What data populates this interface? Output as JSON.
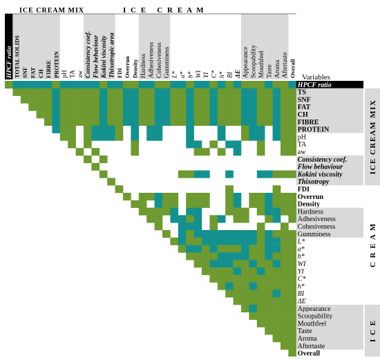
{
  "colors": {
    "green": "#6e9a31",
    "teal": "#14918e",
    "label_bg": "#d9d9d9",
    "black": "#000000"
  },
  "headers": {
    "mix": "ICE CREAM MIX",
    "ice_cream_spaced": "I C E   C R E A M",
    "variables": "Variables",
    "right_mix": "ICE CREAM MIX",
    "right_cream": "C R E A M",
    "right_ice": "I C E"
  },
  "columns": [
    {
      "label": "HPCF ratio",
      "style": "bi",
      "dark": true
    },
    {
      "label": "TOTAL SOLIDS",
      "style": "b",
      "bg": true
    },
    {
      "label": "SNF",
      "style": "b",
      "bg": true
    },
    {
      "label": "FAT",
      "style": "b",
      "bg": true
    },
    {
      "label": "CH",
      "style": "b",
      "bg": true
    },
    {
      "label": "FIBRE",
      "style": "b",
      "bg": true
    },
    {
      "label": "PROTEIN",
      "style": "b",
      "bg": true
    },
    {
      "label": "pH",
      "style": "n",
      "bg": false
    },
    {
      "label": "TA",
      "style": "n",
      "bg": false
    },
    {
      "label": "aw",
      "style": "n",
      "bg": false
    },
    {
      "label": "Consistency coef.",
      "style": "bi",
      "bg": true
    },
    {
      "label": "Flow behaviour",
      "style": "bi",
      "bg": true
    },
    {
      "label": "Kokini viscosity",
      "style": "bi",
      "bg": true
    },
    {
      "label": "Thixotropic area",
      "style": "bi",
      "bg": true
    },
    {
      "label": "FDI",
      "style": "b",
      "bg": false
    },
    {
      "label": "Overrun",
      "style": "b",
      "bg": false
    },
    {
      "label": "Density",
      "style": "b",
      "bg": false
    },
    {
      "label": "Hardness",
      "style": "n",
      "bg": true
    },
    {
      "label": "Adhesiveness",
      "style": "n",
      "bg": true
    },
    {
      "label": "Cohesiveness",
      "style": "n",
      "bg": true
    },
    {
      "label": "Gumminess",
      "style": "n",
      "bg": true
    },
    {
      "label": "L*",
      "style": "i",
      "bg": false
    },
    {
      "label": "a*",
      "style": "i",
      "bg": false
    },
    {
      "label": "b*",
      "style": "i",
      "bg": false
    },
    {
      "label": "WI",
      "style": "i",
      "bg": false
    },
    {
      "label": "YI",
      "style": "i",
      "bg": false
    },
    {
      "label": "C*",
      "style": "i",
      "bg": false
    },
    {
      "label": "h*",
      "style": "i",
      "bg": false
    },
    {
      "label": "BI",
      "style": "i",
      "bg": false
    },
    {
      "label": "ΔE",
      "style": "bi",
      "bg": false
    },
    {
      "label": "Appearance",
      "style": "n",
      "bg": true
    },
    {
      "label": "Scoopability",
      "style": "n",
      "bg": true
    },
    {
      "label": "Mouthfeel",
      "style": "n",
      "bg": true
    },
    {
      "label": "Taste",
      "style": "n",
      "bg": true
    },
    {
      "label": "Aroma",
      "style": "n",
      "bg": true
    },
    {
      "label": "Aftertaste",
      "style": "n",
      "bg": true
    },
    {
      "label": "Overall",
      "style": "b",
      "bg": false
    }
  ],
  "rows": [
    {
      "label": "HPCF ratio",
      "style": "bi",
      "dark": true
    },
    {
      "label": "TS",
      "style": "b",
      "bg": true
    },
    {
      "label": "SNF",
      "style": "b",
      "bg": true
    },
    {
      "label": "FAT",
      "style": "b",
      "bg": true
    },
    {
      "label": "CH",
      "style": "b",
      "bg": true
    },
    {
      "label": "FIBRE",
      "style": "b",
      "bg": true
    },
    {
      "label": "PROTEIN",
      "style": "b",
      "bg": true
    },
    {
      "label": "pH",
      "style": "n",
      "bg": false
    },
    {
      "label": "TA",
      "style": "n",
      "bg": false
    },
    {
      "label": "aw",
      "style": "n",
      "bg": false
    },
    {
      "label": "Consistency coef.",
      "style": "bi",
      "bg": true
    },
    {
      "label": "Flow behaviour",
      "style": "bi",
      "bg": true
    },
    {
      "label": "Kokini viscosity",
      "style": "bi",
      "bg": true
    },
    {
      "label": "Thixotropy",
      "style": "bi",
      "bg": true
    },
    {
      "label": "FDI",
      "style": "b",
      "bg": false
    },
    {
      "label": "Overrun",
      "style": "b",
      "bg": false
    },
    {
      "label": "Density",
      "style": "b",
      "bg": false
    },
    {
      "label": "Hardness",
      "style": "n",
      "bg": true
    },
    {
      "label": "Adhesiveness",
      "style": "n",
      "bg": true
    },
    {
      "label": "Cohesiveness",
      "style": "n",
      "bg": true
    },
    {
      "label": "Gumminess",
      "style": "n",
      "bg": true
    },
    {
      "label": "L*",
      "style": "i",
      "bg": false
    },
    {
      "label": "a*",
      "style": "i",
      "bg": false
    },
    {
      "label": "b*",
      "style": "i",
      "bg": false
    },
    {
      "label": "WI",
      "style": "i",
      "bg": false
    },
    {
      "label": "YI",
      "style": "i",
      "bg": false
    },
    {
      "label": "C*",
      "style": "i",
      "bg": false
    },
    {
      "label": "h*",
      "style": "i",
      "bg": false
    },
    {
      "label": "BI",
      "style": "i",
      "bg": false
    },
    {
      "label": "ΔE",
      "style": "i",
      "bg": false
    },
    {
      "label": "Appearance",
      "style": "n",
      "bg": true
    },
    {
      "label": "Scoopability",
      "style": "n",
      "bg": true
    },
    {
      "label": "Mouthfeel",
      "style": "n",
      "bg": true
    },
    {
      "label": "Taste",
      "style": "n",
      "bg": true
    },
    {
      "label": "Aroma",
      "style": "n",
      "bg": true
    },
    {
      "label": "Aftertaste",
      "style": "n",
      "bg": true
    },
    {
      "label": "Overall",
      "style": "b",
      "bg": false
    }
  ],
  "matrix_pattern": [
    "GTTTTTGTTTTTGTTGGTTGGTTGTTGTGTGGGTGGT",
    ".GGGGGTGGGGGTGGTTGGTTGGTGGTGGGTTGGTGG",
    "..GGGGTGGGGGTGGTTGGTTGGTGGTGGGTTGGTGG",
    "...GGGTGGGGGTGGTTGGTTGGTGGTGGGTTGGTGG",
    "....GGTGGGGGTGGTTGGTTGGTGGTGGGTTGGTGG",
    ".....GTGGGGGTGGTTGGTTGGTGGTGGGTTGGTGG",
    "......TGG.GTTTG.T.TT...T...T..GTT.TGG",
    ".......GG.GTTTG.T.TT...T...T..GTT.TGG",
    "........G.G.....G......TT.G.TT..G..GG",
    ".........G.G....G.......GG.G.T..G..GG",
    "..........G.G........................",
    "...........G.........................",
    "............G.........GGTT..T...TTGGG",
    ".............G.......................",
    "..............G.............G.....G..",
    "...............G.GGTGG.GGG..GT.GGTGGG",
    "................GG.TGG.GGG..GT.GGTGGG",
    ".................GGGGT.TT...GGG.GTTGG",
    "..................GG.TTGT.GT.GG..GT.G",
    "...................G..TTT.G.....G..G.",
    "....................G.TGTTTTTTTTGTGGG",
    ".....................GTGGTTTTTTTGTTGG",
    "......................GTTGTGGGTGGTTGG",
    ".......................GGGGTTTTGGTGGG",
    "........................GGTTTGGTGGTGG",
    ".........................GGGGTGGTGGGG",
    "..........................GGGGGGGGGGG",
    "...........................GTGGTGGGGG",
    "............................GGGGGGTGG",
    ".............................GGGGGGGG",
    "..............................GTGGGGG",
    "...............................GGGGGG",
    "................................GGGGG",
    ".................................GGGG",
    "..................................GGG",
    "...................................GG",
    "....................................G"
  ]
}
